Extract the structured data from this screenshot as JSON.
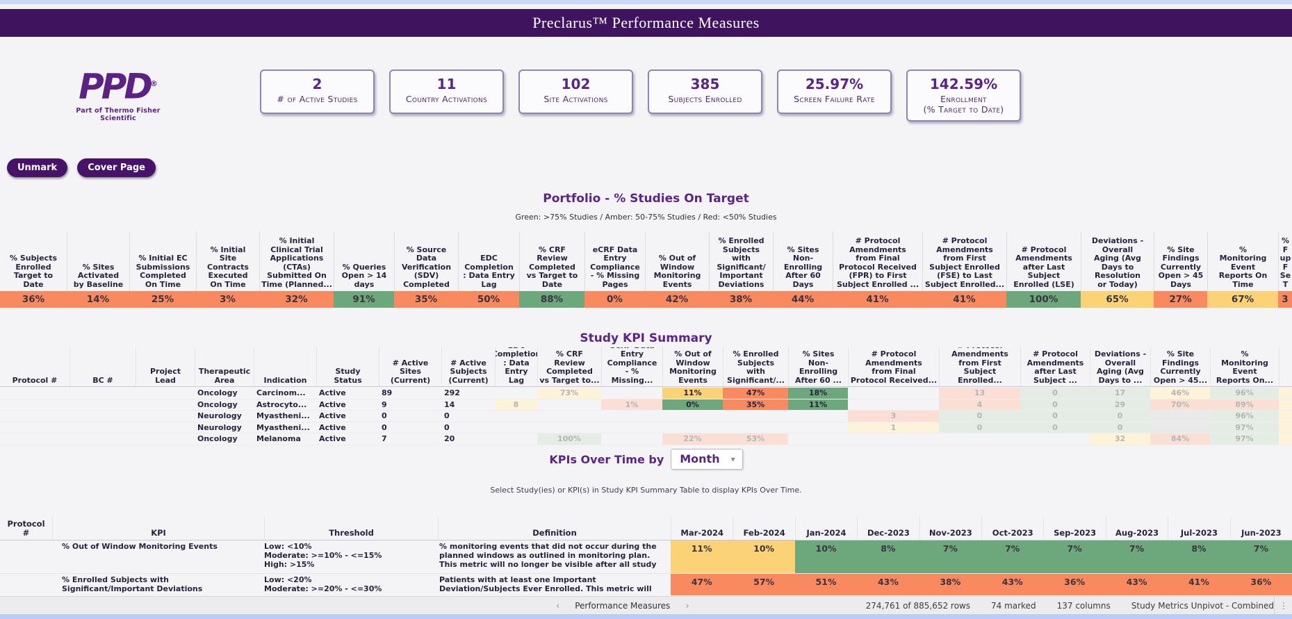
{
  "header": {
    "title": "Preclarus™ Performance Measures"
  },
  "logo": {
    "text": "PPD",
    "registered": "®",
    "tagline": "Part of Thermo Fisher Scientific"
  },
  "kpi_cards": [
    {
      "value": "2",
      "label": "# of Active Studies"
    },
    {
      "value": "11",
      "label": "Country Activations"
    },
    {
      "value": "102",
      "label": "Site Activations"
    },
    {
      "value": "385",
      "label": "Subjects Enrolled"
    },
    {
      "value": "25.97%",
      "label": "Screen Failure Rate"
    },
    {
      "value": "142.59%",
      "label": "Enrollment\n(% Target to Date)"
    }
  ],
  "toolbar": {
    "unmark_label": "Unmark",
    "cover_page_label": "Cover Page"
  },
  "portfolio": {
    "title": "Portfolio - % Studies On Target",
    "legend": "Green: >75% Studies / Amber: 50-75% Studies / Red: <50% Studies",
    "columns": [
      {
        "header": "% Subjects\nEnrolled\nTarget to\nDate",
        "value": "36%",
        "status": "red"
      },
      {
        "header": "% Sites\nActivated\nby Baseline",
        "value": "14%",
        "status": "red"
      },
      {
        "header": "% Initial EC\nSubmissions\nCompleted\nOn Time",
        "value": "25%",
        "status": "red"
      },
      {
        "header": "% Initial\nSite\nContracts\nExecuted\nOn Time",
        "value": "3%",
        "status": "red"
      },
      {
        "header": "% Initial\nClinical Trial\nApplications\n(CTAs)\nSubmitted On\nTime (Planned...",
        "value": "32%",
        "status": "red"
      },
      {
        "header": "% Queries\nOpen > 14\ndays",
        "value": "91%",
        "status": "green"
      },
      {
        "header": "% Source\nData\nVerification\n(SDV)\nCompleted",
        "value": "35%",
        "status": "red"
      },
      {
        "header": "EDC\nCompletion\n: Data Entry\nLag",
        "value": "50%",
        "status": "red"
      },
      {
        "header": "% CRF\nReview\nCompleted\nvs Target to\nDate",
        "value": "88%",
        "status": "green"
      },
      {
        "header": "eCRF Data\nEntry\nCompliance\n- % Missing\nPages",
        "value": "0%",
        "status": "red"
      },
      {
        "header": "% Out of\nWindow\nMonitoring\nEvents",
        "value": "42%",
        "status": "red"
      },
      {
        "header": "% Enrolled\nSubjects\nwith\nSignificant/\nImportant\nDeviations",
        "value": "38%",
        "status": "red"
      },
      {
        "header": "% Sites\nNon-\nEnrolling\nAfter 60\nDays",
        "value": "44%",
        "status": "red"
      },
      {
        "header": "# Protocol\nAmendments\nfrom Final\nProtocol Received\n(FPR) to First\nSubject Enrolled ...",
        "value": "41%",
        "status": "red"
      },
      {
        "header": "# Protocol\nAmendments\nfrom First\nSubject Enrolled\n(FSE) to Last\nSubject Enrolled...",
        "value": "41%",
        "status": "red"
      },
      {
        "header": "# Protocol\nAmendments\nafter Last\nSubject\nEnrolled (LSE)",
        "value": "100%",
        "status": "green"
      },
      {
        "header": "Deviations -\nOverall\nAging (Avg\nDays to\nResolution\nor Today)",
        "value": "65%",
        "status": "amber"
      },
      {
        "header": "% Site\nFindings\nCurrently\nOpen > 45\nDays",
        "value": "27%",
        "status": "red"
      },
      {
        "header": "%\nMonitoring\nEvent\nReports On\nTime",
        "value": "67%",
        "status": "amber"
      },
      {
        "header": "% F\nup F\nSe\nT",
        "value": "3",
        "status": "red"
      }
    ]
  },
  "study_kpi": {
    "title": "Study KPI Summary",
    "columns": [
      "Protocol #",
      "BC #",
      "Project\nLead",
      "Therapeutic\nArea",
      "Indication",
      "Study\nStatus",
      "# Active\nSites\n(Current)",
      "# Active\nSubjects\n(Current)",
      "EDC\nCompletion\n: Data Entry\nLag",
      "% CRF\nReview\nCompleted\nvs Target to...",
      "eCRF Data\nEntry\nCompliance\n- % Missing...",
      "% Out of\nWindow\nMonitoring\nEvents",
      "% Enrolled\nSubjects\nwith\nSignificant/...",
      "% Sites\nNon-\nEnrolling\nAfter 60  ...",
      "# Protocol\nAmendments\nfrom Final\nProtocol Received...",
      "# Protocol\nAmendments\nfrom First\nSubject Enrolled...",
      "# Protocol\nAmendments\nafter Last\nSubject   ...",
      "Deviations -\nOverall\nAging (Avg\nDays to  ...",
      "% Site\nFindings\nCurrently\nOpen > 45...",
      "%\nMonitoring\nEvent\nReports On...",
      ""
    ],
    "rows": [
      {
        "cells": [
          {
            "t": ""
          },
          {
            "t": ""
          },
          {
            "t": ""
          },
          {
            "t": "Oncology"
          },
          {
            "t": "Carcinom..."
          },
          {
            "t": "Active"
          },
          {
            "t": "89"
          },
          {
            "t": "292"
          },
          {
            "t": ""
          },
          {
            "t": "73%",
            "bg": "pyellow",
            "m": true
          },
          {
            "t": ""
          },
          {
            "t": "11%",
            "bg": "amber"
          },
          {
            "t": "47%",
            "bg": "red"
          },
          {
            "t": "18%",
            "bg": "green"
          },
          {
            "t": ""
          },
          {
            "t": "13",
            "bg": "pred",
            "m": true
          },
          {
            "t": "0",
            "bg": "pgreen",
            "m": true
          },
          {
            "t": "17",
            "bg": "pgreen",
            "m": true
          },
          {
            "t": "46%",
            "bg": "pyellow",
            "m": true
          },
          {
            "t": "96%",
            "bg": "pgreen",
            "m": true
          },
          {
            "t": "",
            "bg": "pyellow"
          }
        ]
      },
      {
        "cells": [
          {
            "t": ""
          },
          {
            "t": ""
          },
          {
            "t": ""
          },
          {
            "t": "Oncology"
          },
          {
            "t": "Astrocyto..."
          },
          {
            "t": "Active"
          },
          {
            "t": "9"
          },
          {
            "t": "14"
          },
          {
            "t": "8",
            "bg": "pyellow",
            "m": true
          },
          {
            "t": ""
          },
          {
            "t": "1%",
            "bg": "pred",
            "m": true
          },
          {
            "t": "0%",
            "bg": "green"
          },
          {
            "t": "35%",
            "bg": "red"
          },
          {
            "t": "11%",
            "bg": "green"
          },
          {
            "t": ""
          },
          {
            "t": "4",
            "bg": "pred",
            "m": true
          },
          {
            "t": "0",
            "bg": "pgreen",
            "m": true
          },
          {
            "t": "29",
            "bg": "pgreen",
            "m": true
          },
          {
            "t": "70%",
            "bg": "pred",
            "m": true
          },
          {
            "t": "89%",
            "bg": "pred",
            "m": true
          },
          {
            "t": "",
            "bg": "pyellow"
          }
        ]
      },
      {
        "cells": [
          {
            "t": ""
          },
          {
            "t": ""
          },
          {
            "t": ""
          },
          {
            "t": "Neurology"
          },
          {
            "t": "Myastheni..."
          },
          {
            "t": "Active"
          },
          {
            "t": "0"
          },
          {
            "t": "0"
          },
          {
            "t": ""
          },
          {
            "t": ""
          },
          {
            "t": ""
          },
          {
            "t": ""
          },
          {
            "t": ""
          },
          {
            "t": ""
          },
          {
            "t": "3",
            "bg": "pred",
            "m": true
          },
          {
            "t": "0",
            "bg": "pgreen",
            "m": true
          },
          {
            "t": "0",
            "bg": "pgreen",
            "m": true
          },
          {
            "t": "0",
            "bg": "pgreen",
            "m": true
          },
          {
            "t": "",
            "bg": "gray"
          },
          {
            "t": "96%",
            "bg": "pgreen",
            "m": true
          },
          {
            "t": "",
            "bg": "pyellow"
          }
        ]
      },
      {
        "cells": [
          {
            "t": ""
          },
          {
            "t": ""
          },
          {
            "t": ""
          },
          {
            "t": "Neurology"
          },
          {
            "t": "Myastheni..."
          },
          {
            "t": "Active"
          },
          {
            "t": "0"
          },
          {
            "t": "0"
          },
          {
            "t": ""
          },
          {
            "t": ""
          },
          {
            "t": ""
          },
          {
            "t": ""
          },
          {
            "t": ""
          },
          {
            "t": ""
          },
          {
            "t": "1",
            "bg": "pyellow",
            "m": true
          },
          {
            "t": "0",
            "bg": "pgreen",
            "m": true
          },
          {
            "t": "0",
            "bg": "pgreen",
            "m": true
          },
          {
            "t": "0",
            "bg": "pgreen",
            "m": true
          },
          {
            "t": "",
            "bg": "gray"
          },
          {
            "t": "97%",
            "bg": "pgreen",
            "m": true
          },
          {
            "t": "",
            "bg": "pyellow"
          }
        ]
      },
      {
        "cells": [
          {
            "t": ""
          },
          {
            "t": ""
          },
          {
            "t": ""
          },
          {
            "t": "Oncology"
          },
          {
            "t": "Melanoma"
          },
          {
            "t": "Active"
          },
          {
            "t": "7"
          },
          {
            "t": "20"
          },
          {
            "t": ""
          },
          {
            "t": "100%",
            "bg": "pgreen",
            "m": true
          },
          {
            "t": ""
          },
          {
            "t": "22%",
            "bg": "pred",
            "m": true
          },
          {
            "t": "53%",
            "bg": "pred",
            "m": true
          },
          {
            "t": ""
          },
          {
            "t": ""
          },
          {
            "t": ""
          },
          {
            "t": ""
          },
          {
            "t": "32",
            "bg": "pyellow",
            "m": true
          },
          {
            "t": "84%",
            "bg": "pred",
            "m": true
          },
          {
            "t": "97%",
            "bg": "pgreen",
            "m": true
          },
          {
            "t": "",
            "bg": "pyellow"
          }
        ]
      }
    ]
  },
  "kpis_over_time": {
    "title": "KPIs Over Time by",
    "selector_value": "Month",
    "hint": "Select Study(ies) or KPI(s) in Study KPI Summary Table to display KPIs Over Time."
  },
  "monthly": {
    "left_headers": [
      "Protocol\n#",
      "KPI",
      "Threshold",
      "Definition"
    ],
    "months": [
      "Mar-2024",
      "Feb-2024",
      "Jan-2024",
      "Dec-2023",
      "Nov-2023",
      "Oct-2023",
      "Sep-2023",
      "Aug-2023",
      "Jul-2023",
      "Jun-2023"
    ],
    "rows": [
      {
        "protocol": "",
        "kpi": "% Out of Window Monitoring Events",
        "threshold": "Low: <10%\nModerate: >=10% - <=15%\nHigh: >15%",
        "definition": "% monitoring events that did not occur during the planned windows as outlined in monitoring plan. This metric will no longer be visible after all study  ...",
        "values": [
          {
            "v": "11%",
            "s": "amber"
          },
          {
            "v": "10%",
            "s": "amber"
          },
          {
            "v": "10%",
            "s": "green"
          },
          {
            "v": "8%",
            "s": "green"
          },
          {
            "v": "7%",
            "s": "green"
          },
          {
            "v": "7%",
            "s": "green"
          },
          {
            "v": "7%",
            "s": "green"
          },
          {
            "v": "7%",
            "s": "green"
          },
          {
            "v": "8%",
            "s": "green"
          },
          {
            "v": "7%",
            "s": "green"
          }
        ]
      },
      {
        "protocol": "",
        "kpi": "% Enrolled Subjects with\nSignificant/Important Deviations",
        "threshold": "Low: <20%\nModerate: >=20% - <=30%",
        "definition": "Patients with at least one Important Deviation/Subjects Ever Enrolled.  This metric will",
        "values": [
          {
            "v": "47%",
            "s": "red"
          },
          {
            "v": "57%",
            "s": "red"
          },
          {
            "v": "51%",
            "s": "red"
          },
          {
            "v": "43%",
            "s": "red"
          },
          {
            "v": "38%",
            "s": "red"
          },
          {
            "v": "43%",
            "s": "red"
          },
          {
            "v": "36%",
            "s": "red"
          },
          {
            "v": "43%",
            "s": "red"
          },
          {
            "v": "41%",
            "s": "red"
          },
          {
            "v": "36%",
            "s": "red"
          }
        ]
      }
    ]
  },
  "status_bar": {
    "page": "Performance Measures",
    "rows": "274,761 of 885,652 rows",
    "marked": "74 marked",
    "columns": "137 columns",
    "table": "Study Metrics Unpivot - Combined"
  },
  "icons": {
    "prev": "‹",
    "next": "›",
    "dropdown": "▾",
    "kebab": "⋮"
  },
  "colors": {
    "red": "#F9895F",
    "green": "#6CA87B",
    "amber": "#FCD277",
    "pred": "#FBDFD5",
    "pgreen": "#E3EDE3",
    "pyellow": "#FCF3D9",
    "gray": "#EAEAEA",
    "brand_purple": "#5B2185",
    "titlebar_purple": "#40135E"
  }
}
